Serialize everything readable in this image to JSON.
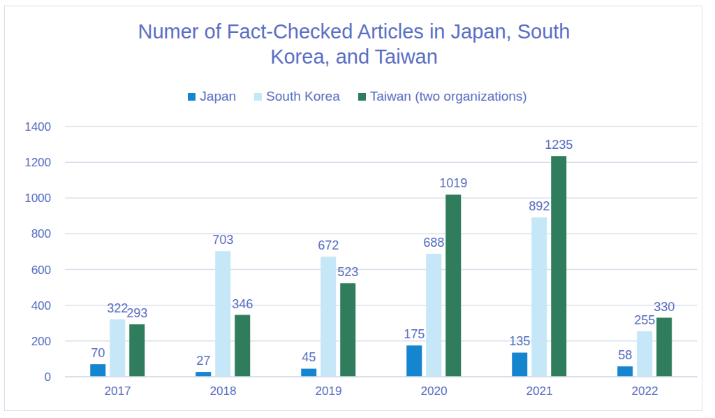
{
  "chart_data": {
    "type": "bar",
    "title": "Numer of Fact-Checked Articles in Japan, South Korea, and Taiwan",
    "categories": [
      "2017",
      "2018",
      "2019",
      "2020",
      "2021",
      "2022"
    ],
    "series": [
      {
        "name": "Japan",
        "color": "#1585d0",
        "values": [
          70,
          27,
          45,
          175,
          135,
          58
        ]
      },
      {
        "name": "South Korea",
        "color": "#c6e7f8",
        "values": [
          322,
          703,
          672,
          688,
          892,
          255
        ]
      },
      {
        "name": "Taiwan (two organizations)",
        "color": "#2f7d5d",
        "values": [
          293,
          346,
          523,
          1019,
          1235,
          330
        ]
      }
    ],
    "ylim": [
      0,
      1400
    ],
    "yticks": [
      0,
      200,
      400,
      600,
      800,
      1000,
      1200,
      1400
    ],
    "grid": true,
    "legend": "top",
    "data_labels": true
  }
}
